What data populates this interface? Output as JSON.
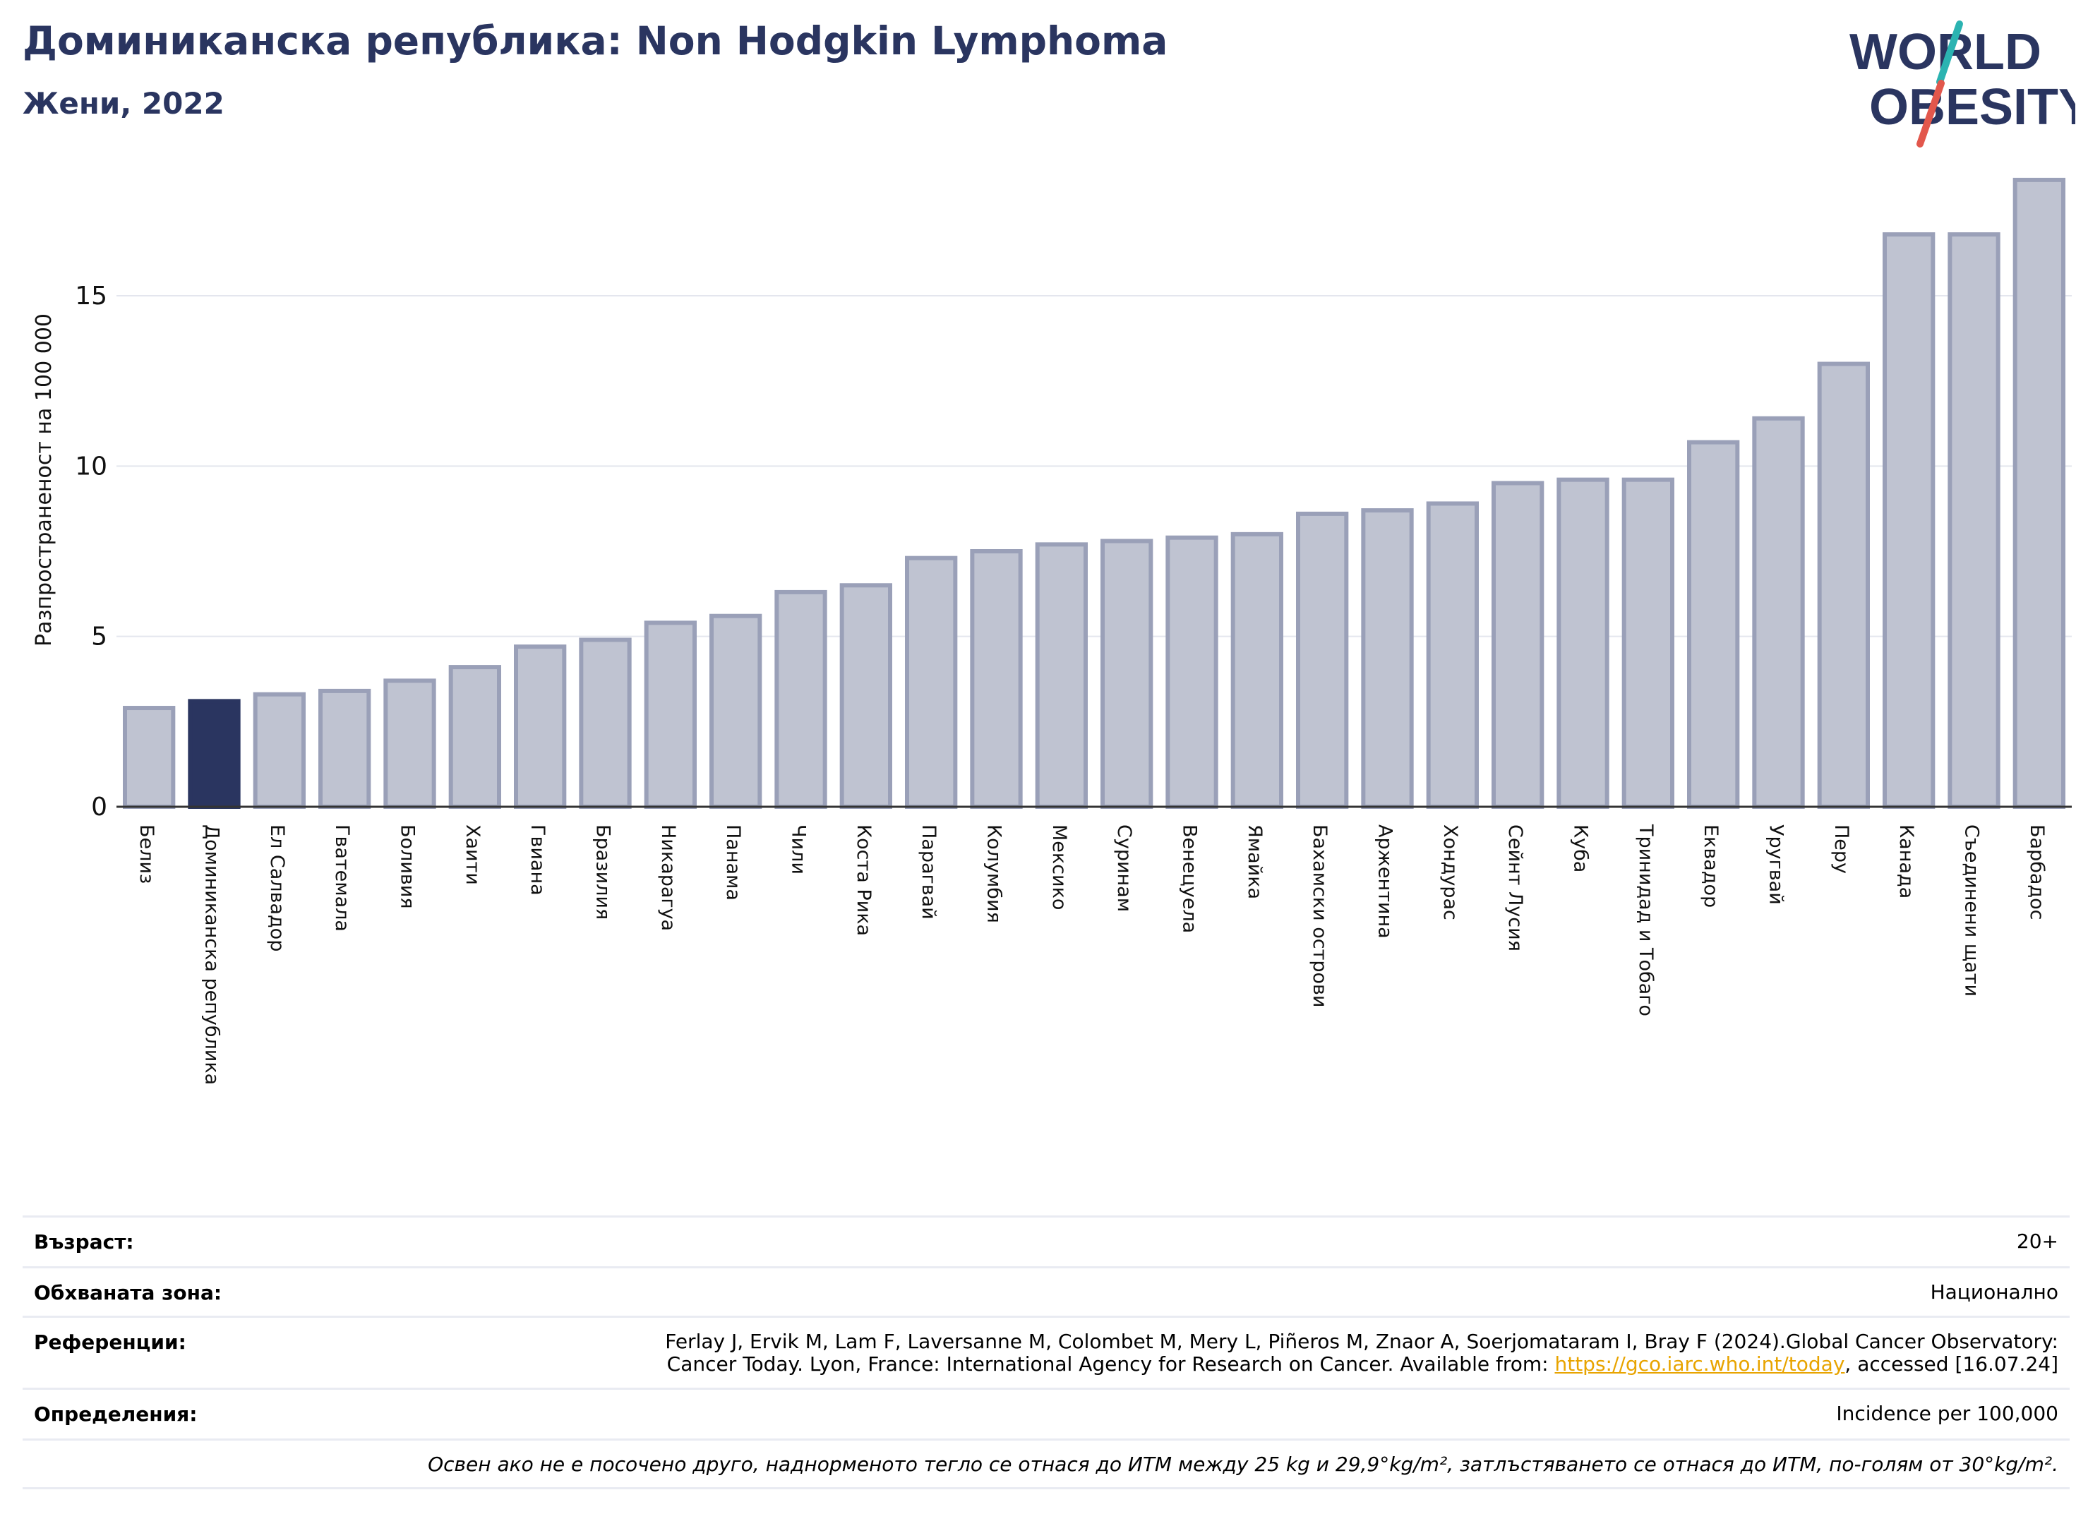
{
  "header": {
    "title": "Доминиканска република: Non Hodgkin Lymphoma",
    "subtitle": "Жени, 2022"
  },
  "logo": {
    "line1": "WORLD",
    "line2": "OBESITY",
    "colors": {
      "text": "#2a3560",
      "slash_teal": "#2bb3b1",
      "slash_red": "#e2574c"
    }
  },
  "chart_data": {
    "type": "bar",
    "ylabel": "Разпространеност  на 100 000",
    "ylim": [
      0,
      19
    ],
    "yticks": [
      0,
      5,
      10,
      15
    ],
    "grid": true,
    "highlight_category": "Доминиканска република",
    "colors": {
      "bar": "#bfc3d1",
      "bar_edge": "#9aa0b8",
      "highlight": "#2a3560"
    },
    "categories": [
      "Белиз",
      "Доминиканска република",
      "Ел Салвадор",
      "Гватемала",
      "Боливия",
      "Хаити",
      "Гвиана",
      "Бразилия",
      "Никарагуа",
      "Панама",
      "Чили",
      "Коста Рика",
      "Парагвай",
      "Колумбия",
      "Мексико",
      "Суринам",
      "Венецуела",
      "Ямайка",
      "Бахамски острови",
      "Аржентина",
      "Хондурас",
      "Сейнт Лусия",
      "Куба",
      "Тринидад и Тобаго",
      "Еквадор",
      "Уругвай",
      "Перу",
      "Канада",
      "Съединени щати",
      "Барбадос"
    ],
    "values": [
      2.9,
      3.1,
      3.3,
      3.4,
      3.7,
      4.1,
      4.7,
      4.9,
      5.4,
      5.6,
      6.3,
      6.5,
      7.3,
      7.5,
      7.7,
      7.8,
      7.9,
      8.0,
      8.6,
      8.7,
      8.9,
      9.5,
      9.6,
      9.6,
      10.7,
      11.4,
      13.0,
      16.8,
      16.8,
      18.4
    ]
  },
  "info": {
    "age_label": "Възраст:",
    "age_value": "20+",
    "area_label": "Обхваната зона:",
    "area_value": "Национално",
    "refs_label": "Референции:",
    "refs_line1": "Ferlay J, Ervik M, Lam F, Laversanne M, Colombet M, Mery L, Piñeros M, Znaor A, Soerjomataram I, Bray F (2024).Global Cancer Observatory:",
    "refs_line2_pre": "Cancer Today. Lyon, France: International Agency for Research on Cancer. Available from: ",
    "refs_link": "https://gco.iarc.who.int/today",
    "refs_line2_post": ", accessed [16.07.24]",
    "defs_label": "Определения:",
    "defs_value": "Incidence per 100,000",
    "note": "Освен ако не е посочено друго, наднорменото тегло се отнася до ИТМ между 25 kg и 29,9°kg/m², затлъстяването се отнася до ИТМ, по-голям от 30°kg/m²."
  }
}
